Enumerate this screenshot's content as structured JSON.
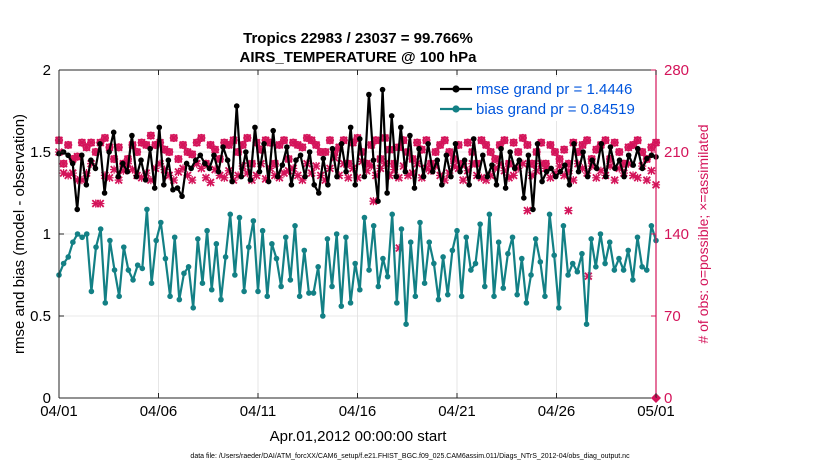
{
  "chart_data": {
    "type": "line",
    "title": [
      "Tropics 22983 / 23037 = 99.766%",
      "AIRS_TEMPERATURE @ 100 hPa"
    ],
    "xlabel": "Apr.01,2012 00:00:00 start",
    "ylabel_left": "rmse and bias (model - observation)",
    "ylabel_right": "# of obs: o=possible; ×=assimilated",
    "footer": "data file: /Users/raeder/DAI/ATM_forcXX/CAM6_setup/f.e21.FHIST_BGC.f09_025.CAM6assim.011/Diags_NTrS_2012-04/obs_diag_output.nc",
    "x_ticks": [
      "04/01",
      "04/06",
      "04/11",
      "04/16",
      "04/21",
      "04/26",
      "05/01"
    ],
    "x_range_days": [
      0,
      30
    ],
    "y_left": {
      "range": [
        0,
        2
      ],
      "ticks": [
        "0",
        "0.5",
        "1",
        "1.5",
        "2"
      ]
    },
    "y_right": {
      "range": [
        0,
        280
      ],
      "ticks": [
        "0",
        "70",
        "140",
        "210",
        "280"
      ]
    },
    "colors": {
      "rmse": "#000000",
      "bias": "#138085",
      "obs": "#d4145a",
      "legend_text": "#0055dd"
    },
    "legend": {
      "position": "top-right",
      "entries": [
        "rmse grand pr = 1.4446",
        "bias grand pr = 0.84519"
      ]
    },
    "series": [
      {
        "name": "rmse",
        "axis": "left",
        "values": [
          1.49,
          1.5,
          1.48,
          1.43,
          1.15,
          1.48,
          1.3,
          1.45,
          1.4,
          1.55,
          1.25,
          1.5,
          1.62,
          1.35,
          1.43,
          1.38,
          1.6,
          1.35,
          1.45,
          1.33,
          1.52,
          1.28,
          1.65,
          1.3,
          1.45,
          1.27,
          1.28,
          1.23,
          1.43,
          1.4,
          1.45,
          1.48,
          1.43,
          1.4,
          1.48,
          1.38,
          1.53,
          1.45,
          1.32,
          1.78,
          1.35,
          1.5,
          1.33,
          1.65,
          1.38,
          1.55,
          1.32,
          1.63,
          1.35,
          1.42,
          1.53,
          1.3,
          1.45,
          1.48,
          1.35,
          1.5,
          1.3,
          1.25,
          1.46,
          1.3,
          1.52,
          1.35,
          1.55,
          1.38,
          1.65,
          1.3,
          1.58,
          1.35,
          1.85,
          1.45,
          1.2,
          1.88,
          1.25,
          1.72,
          1.35,
          1.65,
          1.38,
          1.6,
          1.28,
          1.52,
          1.35,
          1.55,
          1.38,
          1.45,
          1.3,
          1.48,
          1.35,
          1.55,
          1.38,
          1.45,
          1.3,
          1.58,
          1.35,
          1.48,
          1.35,
          1.42,
          1.3,
          1.52,
          1.28,
          1.5,
          1.4,
          1.45,
          1.22,
          1.48,
          1.15,
          1.55,
          1.32,
          1.38,
          1.4,
          1.35,
          1.38,
          1.42,
          1.3,
          1.55,
          1.38,
          1.5,
          1.35,
          1.45,
          1.4,
          1.55,
          1.35,
          1.53,
          1.4,
          1.45,
          1.35,
          1.48,
          1.42,
          1.52,
          1.4,
          1.46,
          1.48,
          1.47
        ]
      },
      {
        "name": "bias",
        "axis": "left",
        "values": [
          0.75,
          0.82,
          0.86,
          0.95,
          1.0,
          0.98,
          1.0,
          0.65,
          0.92,
          1.03,
          0.58,
          0.96,
          0.78,
          0.62,
          0.92,
          0.78,
          0.72,
          0.81,
          0.79,
          1.15,
          0.7,
          0.96,
          1.07,
          0.85,
          0.62,
          0.98,
          0.6,
          0.76,
          0.8,
          0.55,
          0.97,
          0.7,
          1.02,
          0.66,
          0.94,
          0.6,
          0.86,
          1.12,
          0.75,
          1.1,
          0.65,
          0.92,
          1.08,
          0.65,
          1.02,
          0.62,
          0.94,
          0.85,
          0.68,
          0.98,
          0.72,
          1.05,
          0.62,
          0.9,
          0.64,
          0.64,
          0.8,
          0.5,
          0.97,
          0.68,
          1.0,
          0.56,
          0.98,
          0.58,
          0.82,
          0.66,
          1.1,
          0.78,
          1.05,
          0.68,
          0.85,
          0.74,
          1.12,
          0.58,
          1.03,
          0.45,
          0.95,
          0.62,
          1.07,
          0.7,
          0.95,
          0.82,
          0.6,
          0.86,
          0.63,
          0.9,
          1.02,
          0.62,
          0.98,
          0.78,
          0.82,
          1.06,
          0.68,
          1.12,
          0.62,
          0.95,
          0.67,
          0.88,
          0.98,
          0.63,
          0.85,
          0.58,
          0.75,
          0.97,
          0.83,
          0.62,
          1.12,
          0.87,
          0.55,
          1.05,
          0.75,
          0.82,
          0.77,
          0.88,
          0.45,
          0.97,
          0.8,
          1.0,
          0.82,
          0.95,
          0.78,
          0.85,
          0.78,
          0.9,
          0.72,
          0.98,
          0.8,
          0.78,
          1.05,
          0.96
        ]
      },
      {
        "name": "obs assimilated",
        "axis": "right",
        "values": [
          210,
          192,
          190,
          192,
          186,
          186,
          192,
          200,
          166,
          166,
          190,
          188,
          195,
          186,
          194,
          200,
          195,
          190,
          188,
          192,
          186,
          196,
          200,
          195,
          190,
          186,
          193,
          196,
          190,
          186,
          200,
          196,
          188,
          184,
          195,
          190,
          188,
          194,
          186,
          190,
          198,
          192,
          186,
          190,
          200,
          187,
          196,
          190,
          188,
          192,
          194,
          196,
          190,
          186,
          200,
          192,
          198,
          190,
          186,
          196,
          205,
          190,
          200,
          188,
          196,
          188,
          202,
          194,
          198,
          190,
          196,
          200,
          190,
          195,
          188,
          198,
          190,
          192,
          200,
          188,
          196,
          194,
          198,
          190,
          186,
          192,
          198,
          196,
          186,
          194,
          200,
          190,
          188,
          186,
          190,
          196,
          200,
          194,
          188,
          190,
          196,
          200,
          160,
          190,
          194,
          200,
          196,
          188,
          192,
          198,
          190,
          194,
          186,
          200,
          196,
          192,
          198,
          188,
          194,
          190,
          198,
          186,
          196,
          192,
          200,
          190,
          188,
          198,
          186,
          194,
          182
        ]
      },
      {
        "name": "obs possible",
        "axis": "right",
        "values": [
          220,
          200,
          216,
          204,
          206,
          218,
          214,
          218,
          210,
          218,
          222,
          214,
          204,
          214,
          200,
          204,
          216,
          210,
          218,
          216,
          224,
          216,
          218,
          212,
          210,
          222,
          204,
          216,
          210,
          208,
          218,
          222,
          200,
          216,
          212,
          204,
          218,
          216,
          220,
          210,
          216,
          222,
          200,
          218,
          212,
          220,
          218,
          200,
          216,
          220,
          204,
          218,
          216,
          214,
          222,
          220,
          216,
          210,
          210,
          220,
          210,
          214,
          220,
          200,
          218,
          222,
          210,
          200,
          216,
          220,
          204,
          222,
          212,
          200,
          214,
          220,
          210,
          204,
          218,
          212,
          220,
          200,
          210,
          216,
          220,
          210,
          204,
          216,
          200,
          218,
          210,
          200,
          220,
          216,
          210,
          204,
          216,
          220,
          200,
          218,
          210,
          222,
          216,
          200,
          210,
          218,
          200,
          216,
          210,
          204,
          212,
          200,
          218,
          210,
          216,
          220,
          204,
          212,
          216,
          220,
          204,
          218,
          210,
          200,
          214,
          216,
          220,
          210,
          204,
          214,
          218
        ]
      }
    ],
    "outliers": [
      {
        "name": "obs assimilated",
        "axis": "right",
        "points": [
          [
            26.6,
            104
          ],
          [
            17.1,
            128
          ],
          [
            15.8,
            168
          ],
          [
            25.6,
            160
          ]
        ]
      },
      {
        "name": "obs possible",
        "axis": "right",
        "points": [
          [
            30,
            0
          ]
        ]
      }
    ]
  }
}
